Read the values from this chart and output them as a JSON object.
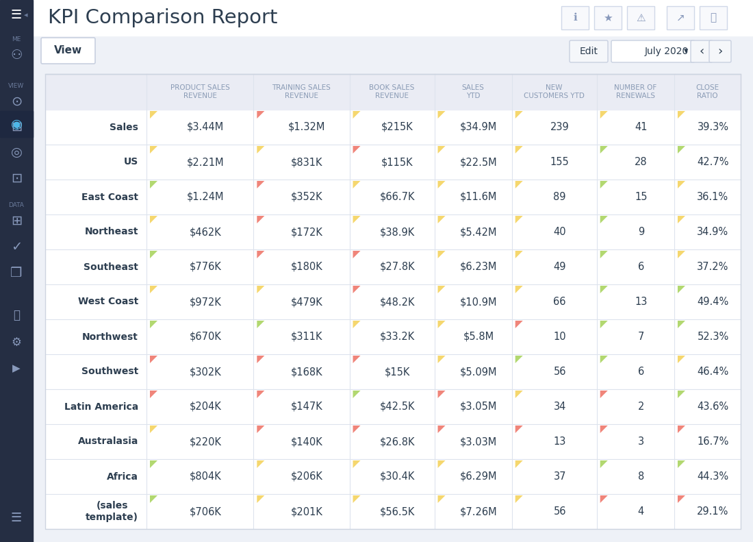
{
  "title": "KPI Comparison Report",
  "columns": [
    "PRODUCT SALES\nREVENUE",
    "TRAINING SALES\nREVENUE",
    "BOOK SALES\nREVENUE",
    "SALES\nYTD",
    "NEW\nCUSTOMERS YTD",
    "NUMBER OF\nRENEWALS",
    "CLOSE\nRATIO"
  ],
  "rows": [
    {
      "label": "Sales",
      "values": [
        "$3.44M",
        "$1.32M",
        "$215K",
        "$34.9M",
        "239",
        "41",
        "39.3%"
      ],
      "indicators": [
        "yellow",
        "red",
        "yellow",
        "yellow",
        "yellow",
        "yellow",
        "yellow"
      ]
    },
    {
      "label": "US",
      "values": [
        "$2.21M",
        "$831K",
        "$115K",
        "$22.5M",
        "155",
        "28",
        "42.7%"
      ],
      "indicators": [
        "yellow",
        "yellow",
        "red",
        "yellow",
        "yellow",
        "green",
        "green"
      ]
    },
    {
      "label": "East Coast",
      "values": [
        "$1.24M",
        "$352K",
        "$66.7K",
        "$11.6M",
        "89",
        "15",
        "36.1%"
      ],
      "indicators": [
        "green",
        "red",
        "yellow",
        "yellow",
        "yellow",
        "green",
        "yellow"
      ]
    },
    {
      "label": "Northeast",
      "values": [
        "$462K",
        "$172K",
        "$38.9K",
        "$5.42M",
        "40",
        "9",
        "34.9%"
      ],
      "indicators": [
        "yellow",
        "red",
        "yellow",
        "yellow",
        "yellow",
        "green",
        "yellow"
      ]
    },
    {
      "label": "Southeast",
      "values": [
        "$776K",
        "$180K",
        "$27.8K",
        "$6.23M",
        "49",
        "6",
        "37.2%"
      ],
      "indicators": [
        "green",
        "red",
        "red",
        "yellow",
        "yellow",
        "green",
        "yellow"
      ]
    },
    {
      "label": "West Coast",
      "values": [
        "$972K",
        "$479K",
        "$48.2K",
        "$10.9M",
        "66",
        "13",
        "49.4%"
      ],
      "indicators": [
        "yellow",
        "yellow",
        "red",
        "yellow",
        "yellow",
        "green",
        "green"
      ]
    },
    {
      "label": "Northwest",
      "values": [
        "$670K",
        "$311K",
        "$33.2K",
        "$5.8M",
        "10",
        "7",
        "52.3%"
      ],
      "indicators": [
        "green",
        "green",
        "yellow",
        "yellow",
        "red",
        "green",
        "green"
      ]
    },
    {
      "label": "Southwest",
      "values": [
        "$302K",
        "$168K",
        "$15K",
        "$5.09M",
        "56",
        "6",
        "46.4%"
      ],
      "indicators": [
        "red",
        "red",
        "red",
        "yellow",
        "green",
        "green",
        "yellow"
      ]
    },
    {
      "label": "Latin America",
      "values": [
        "$204K",
        "$147K",
        "$42.5K",
        "$3.05M",
        "34",
        "2",
        "43.6%"
      ],
      "indicators": [
        "red",
        "red",
        "green",
        "red",
        "yellow",
        "red",
        "green"
      ]
    },
    {
      "label": "Australasia",
      "values": [
        "$220K",
        "$140K",
        "$26.8K",
        "$3.03M",
        "13",
        "3",
        "16.7%"
      ],
      "indicators": [
        "yellow",
        "red",
        "red",
        "red",
        "red",
        "red",
        "red"
      ]
    },
    {
      "label": "Africa",
      "values": [
        "$804K",
        "$206K",
        "$30.4K",
        "$6.29M",
        "37",
        "8",
        "44.3%"
      ],
      "indicators": [
        "green",
        "yellow",
        "yellow",
        "yellow",
        "yellow",
        "green",
        "green"
      ]
    },
    {
      "label": "(sales\ntemplate)",
      "values": [
        "$706K",
        "$201K",
        "$56.5K",
        "$7.26M",
        "56",
        "4",
        "29.1%"
      ],
      "indicators": [
        "green",
        "yellow",
        "yellow",
        "yellow",
        "yellow",
        "red",
        "red"
      ]
    }
  ],
  "bg_color": "#eef1f7",
  "table_bg": "#ffffff",
  "header_bg": "#eaecf4",
  "sidebar_bg": "#252e43",
  "topbar_bg": "#ffffff",
  "row_line_color": "#dde3ed",
  "col_line_color": "#dde3ed",
  "header_text_color": "#8a9bb5",
  "row_label_color": "#2d3e50",
  "value_color": "#2d3e50",
  "indicator_colors": {
    "green": "#b2d870",
    "yellow": "#f5d76e",
    "red": "#f0857a"
  },
  "sidebar_icons": [
    "☰",
    "▤",
    "★",
    "⚠",
    "ℹ",
    "▶",
    "≡"
  ],
  "sidebar_section_labels": [
    "ME",
    "VIEW",
    "DATA"
  ]
}
